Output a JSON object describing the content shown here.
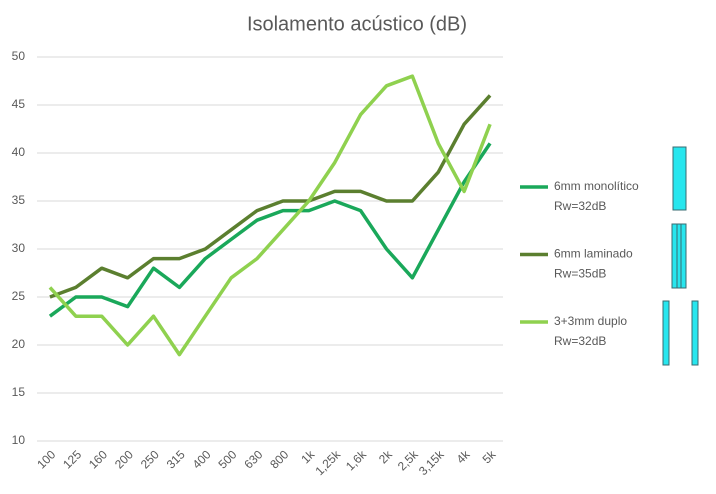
{
  "chart_data": {
    "type": "line",
    "title": "Isolamento acústico (dB)",
    "categories": [
      "100",
      "125",
      "160",
      "200",
      "250",
      "315",
      "400",
      "500",
      "630",
      "800",
      "1k",
      "1,25k",
      "1,6k",
      "2k",
      "2,5k",
      "3,15k",
      "4k",
      "5k"
    ],
    "series": [
      {
        "name": "6mm monolítico",
        "rating": "Rw=32dB",
        "color": "#1aa85a",
        "values": [
          23,
          25,
          25,
          24,
          28,
          26,
          29,
          31,
          33,
          34,
          34,
          35,
          34,
          30,
          27,
          32,
          37,
          41
        ]
      },
      {
        "name": "6mm laminado",
        "rating": "Rw=35dB",
        "color": "#5b7f2f",
        "values": [
          25,
          26,
          28,
          27,
          29,
          29,
          30,
          32,
          34,
          35,
          35,
          36,
          36,
          35,
          35,
          38,
          43,
          46
        ]
      },
      {
        "name": "3+3mm duplo",
        "rating": "Rw=32dB",
        "color": "#8fd14f",
        "values": [
          26,
          23,
          23,
          20,
          23,
          19,
          23,
          27,
          29,
          32,
          35,
          39,
          44,
          47,
          48,
          41,
          36,
          43
        ]
      }
    ],
    "ylim": [
      10,
      50
    ],
    "yticks": [
      10,
      15,
      20,
      25,
      30,
      35,
      40,
      45,
      50
    ],
    "grid": true,
    "legend": "right"
  }
}
